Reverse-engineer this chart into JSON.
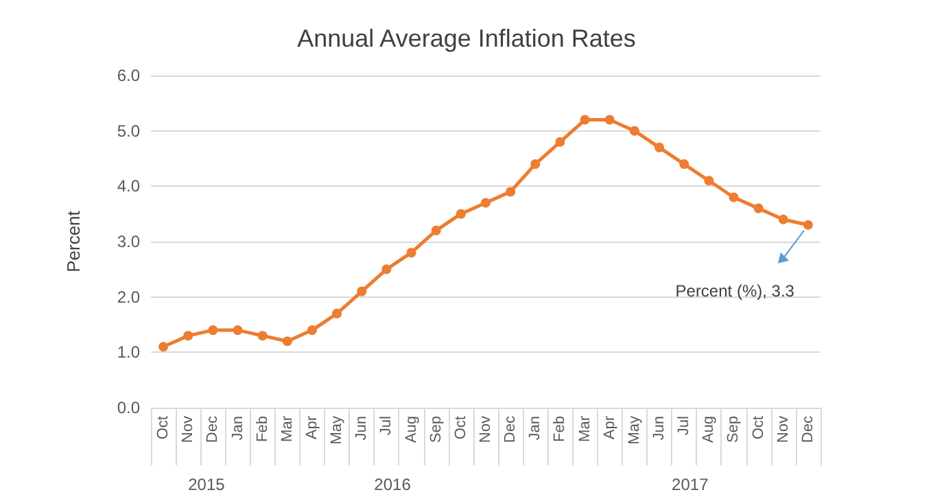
{
  "chart_data": {
    "type": "line",
    "title": "Annual Average Inflation Rates",
    "ylabel": "Percent",
    "categories": [
      "Oct",
      "Nov",
      "Dec",
      "Jan",
      "Feb",
      "Mar",
      "Apr",
      "May",
      "Jun",
      "Jul",
      "Aug",
      "Sep",
      "Oct",
      "Nov",
      "Dec",
      "Jan",
      "Feb",
      "Mar",
      "Apr",
      "May",
      "Jun",
      "Jul",
      "Aug",
      "Sep",
      "Oct",
      "Nov",
      "Dec"
    ],
    "series": [
      {
        "color": "#ed7d31",
        "values": [
          1.1,
          1.3,
          1.4,
          1.4,
          1.3,
          1.2,
          1.4,
          1.7,
          2.1,
          2.5,
          2.8,
          3.2,
          3.5,
          3.7,
          3.9,
          4.4,
          4.8,
          5.2,
          5.2,
          5.0,
          4.7,
          4.4,
          4.1,
          3.8,
          3.6,
          3.4,
          3.3
        ]
      }
    ],
    "ylim": [
      0,
      6
    ],
    "yticks": [
      {
        "value": 0,
        "label": "0.0"
      },
      {
        "value": 1,
        "label": "1.0"
      },
      {
        "value": 2,
        "label": "2.0"
      },
      {
        "value": 3,
        "label": "3.0"
      },
      {
        "value": 4,
        "label": "4.0"
      },
      {
        "value": 5,
        "label": "5.0"
      },
      {
        "value": 6,
        "label": "6.0"
      }
    ],
    "grid": "y",
    "marker": "circle",
    "line_style": "solid",
    "annotations": [
      "2015",
      "2016",
      "2017",
      "Percent (%), 3.3"
    ]
  }
}
